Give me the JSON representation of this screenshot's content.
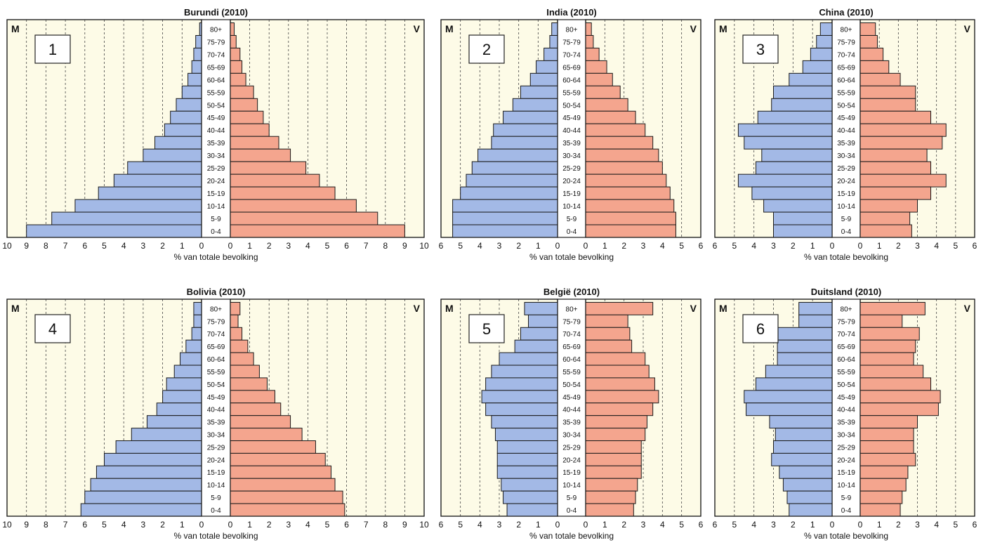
{
  "chart_data": [
    {
      "type": "bar",
      "title": "Burundi (2010)",
      "panel_number": "1",
      "left_label": "M",
      "right_label": "V",
      "xlabel": "% van totale bevolking",
      "x_max": 10,
      "x_ticks_left": [
        "10",
        "9",
        "8",
        "7",
        "6",
        "5",
        "4",
        "3",
        "2",
        "1",
        "0"
      ],
      "x_ticks_right": [
        "0",
        "1",
        "2",
        "3",
        "4",
        "5",
        "6",
        "7",
        "8",
        "9",
        "10"
      ],
      "categories": [
        "80+",
        "75-79",
        "70-74",
        "65-69",
        "60-64",
        "55-59",
        "50-54",
        "45-49",
        "40-44",
        "35-39",
        "30-34",
        "25-29",
        "20-24",
        "15-19",
        "10-14",
        "5-9",
        "0-4"
      ],
      "series": [
        {
          "name": "M",
          "values": [
            0.1,
            0.3,
            0.4,
            0.5,
            0.7,
            1.0,
            1.3,
            1.6,
            1.9,
            2.4,
            3.0,
            3.8,
            4.5,
            5.3,
            6.5,
            7.7,
            9.0
          ]
        },
        {
          "name": "V",
          "values": [
            0.2,
            0.3,
            0.5,
            0.6,
            0.8,
            1.2,
            1.4,
            1.7,
            2.0,
            2.5,
            3.1,
            3.9,
            4.6,
            5.4,
            6.5,
            7.6,
            9.0
          ]
        }
      ]
    },
    {
      "type": "bar",
      "title": "India (2010)",
      "panel_number": "2",
      "left_label": "M",
      "right_label": "V",
      "xlabel": "% van totale bevolking",
      "x_max": 6,
      "x_ticks_left": [
        "6",
        "5",
        "4",
        "3",
        "2",
        "1",
        "0"
      ],
      "x_ticks_right": [
        "0",
        "1",
        "2",
        "3",
        "4",
        "5",
        "6"
      ],
      "categories": [
        "80+",
        "75-79",
        "70-74",
        "65-69",
        "60-64",
        "55-59",
        "50-54",
        "45-49",
        "40-44",
        "35-39",
        "30-34",
        "25-29",
        "20-24",
        "15-19",
        "10-14",
        "5-9",
        "0-4"
      ],
      "series": [
        {
          "name": "M",
          "values": [
            0.3,
            0.4,
            0.7,
            1.1,
            1.4,
            1.9,
            2.3,
            2.8,
            3.3,
            3.4,
            4.1,
            4.4,
            4.7,
            5.0,
            5.4,
            5.4,
            5.4
          ]
        },
        {
          "name": "V",
          "values": [
            0.3,
            0.4,
            0.7,
            1.1,
            1.4,
            1.8,
            2.2,
            2.6,
            3.1,
            3.5,
            3.8,
            4.0,
            4.2,
            4.4,
            4.6,
            4.7,
            4.7
          ]
        }
      ]
    },
    {
      "type": "bar",
      "title": "China (2010)",
      "panel_number": "3",
      "left_label": "M",
      "right_label": "V",
      "xlabel": "% van totale bevolking",
      "x_max": 6,
      "x_ticks_left": [
        "6",
        "5",
        "4",
        "3",
        "2",
        "1",
        "0"
      ],
      "x_ticks_right": [
        "0",
        "1",
        "2",
        "3",
        "4",
        "5",
        "6"
      ],
      "categories": [
        "80+",
        "75-79",
        "70-74",
        "65-69",
        "60-64",
        "55-59",
        "50-54",
        "45-49",
        "40-44",
        "35-39",
        "30-34",
        "25-29",
        "20-24",
        "15-19",
        "10-14",
        "5-9",
        "0-4"
      ],
      "series": [
        {
          "name": "M",
          "values": [
            0.6,
            0.8,
            1.1,
            1.5,
            2.2,
            3.0,
            3.1,
            3.8,
            4.8,
            4.5,
            3.6,
            3.9,
            4.8,
            4.1,
            3.5,
            3.0,
            3.0
          ]
        },
        {
          "name": "V",
          "values": [
            0.8,
            0.9,
            1.2,
            1.5,
            2.1,
            2.9,
            2.9,
            3.7,
            4.5,
            4.3,
            3.5,
            3.7,
            4.5,
            3.7,
            3.0,
            2.6,
            2.7
          ]
        }
      ]
    },
    {
      "type": "bar",
      "title": "Bolivia (2010)",
      "panel_number": "4",
      "left_label": "M",
      "right_label": "V",
      "xlabel": "% van totale bevolking",
      "x_max": 10,
      "x_ticks_left": [
        "10",
        "9",
        "8",
        "7",
        "6",
        "5",
        "4",
        "3",
        "2",
        "1",
        "0"
      ],
      "x_ticks_right": [
        "0",
        "1",
        "2",
        "3",
        "4",
        "5",
        "6",
        "7",
        "8",
        "9",
        "10"
      ],
      "categories": [
        "80+",
        "75-79",
        "70-74",
        "65-69",
        "60-64",
        "55-59",
        "50-54",
        "45-49",
        "40-44",
        "35-39",
        "30-34",
        "25-29",
        "20-24",
        "15-19",
        "10-14",
        "5-9",
        "0-4"
      ],
      "series": [
        {
          "name": "M",
          "values": [
            0.4,
            0.4,
            0.5,
            0.8,
            1.1,
            1.4,
            1.8,
            2.0,
            2.3,
            2.8,
            3.6,
            4.4,
            5.0,
            5.4,
            5.7,
            6.0,
            6.2
          ]
        },
        {
          "name": "V",
          "values": [
            0.5,
            0.4,
            0.6,
            0.9,
            1.2,
            1.5,
            1.9,
            2.3,
            2.6,
            3.1,
            3.7,
            4.4,
            4.9,
            5.2,
            5.4,
            5.8,
            5.9
          ]
        }
      ]
    },
    {
      "type": "bar",
      "title": "België (2010)",
      "panel_number": "5",
      "left_label": "M",
      "right_label": "V",
      "xlabel": "% van totale bevolking",
      "x_max": 6,
      "x_ticks_left": [
        "6",
        "5",
        "4",
        "3",
        "2",
        "1",
        "0"
      ],
      "x_ticks_right": [
        "0",
        "1",
        "2",
        "3",
        "4",
        "5",
        "6"
      ],
      "categories": [
        "80+",
        "75-79",
        "70-74",
        "65-69",
        "60-64",
        "55-59",
        "50-54",
        "45-49",
        "40-44",
        "35-39",
        "30-34",
        "25-29",
        "20-24",
        "15-19",
        "10-14",
        "5-9",
        "0-4"
      ],
      "series": [
        {
          "name": "M",
          "values": [
            1.7,
            1.5,
            1.9,
            2.2,
            3.0,
            3.4,
            3.7,
            3.9,
            3.7,
            3.4,
            3.2,
            3.1,
            3.1,
            3.1,
            2.9,
            2.8,
            2.6
          ]
        },
        {
          "name": "V",
          "values": [
            3.5,
            2.2,
            2.3,
            2.4,
            3.1,
            3.3,
            3.6,
            3.8,
            3.5,
            3.2,
            3.1,
            2.9,
            2.9,
            2.9,
            2.7,
            2.6,
            2.5
          ]
        }
      ]
    },
    {
      "type": "bar",
      "title": "Duitsland (2010)",
      "panel_number": "6",
      "left_label": "M",
      "right_label": "V",
      "xlabel": "% van totale bevolking",
      "x_max": 6,
      "x_ticks_left": [
        "6",
        "5",
        "4",
        "3",
        "2",
        "1",
        "0"
      ],
      "x_ticks_right": [
        "0",
        "1",
        "2",
        "3",
        "4",
        "5",
        "6"
      ],
      "categories": [
        "80+",
        "75-79",
        "70-74",
        "65-69",
        "60-64",
        "55-59",
        "50-54",
        "45-49",
        "40-44",
        "35-39",
        "30-34",
        "25-29",
        "20-24",
        "15-19",
        "10-14",
        "5-9",
        "0-4"
      ],
      "series": [
        {
          "name": "M",
          "values": [
            1.7,
            1.7,
            2.8,
            2.8,
            2.8,
            3.4,
            3.9,
            4.5,
            4.4,
            3.2,
            2.9,
            3.0,
            3.1,
            2.7,
            2.5,
            2.3,
            2.2
          ]
        },
        {
          "name": "V",
          "values": [
            3.4,
            2.2,
            3.1,
            2.9,
            2.8,
            3.3,
            3.7,
            4.2,
            4.1,
            3.0,
            2.8,
            2.8,
            2.9,
            2.5,
            2.4,
            2.2,
            2.1
          ]
        }
      ]
    }
  ]
}
